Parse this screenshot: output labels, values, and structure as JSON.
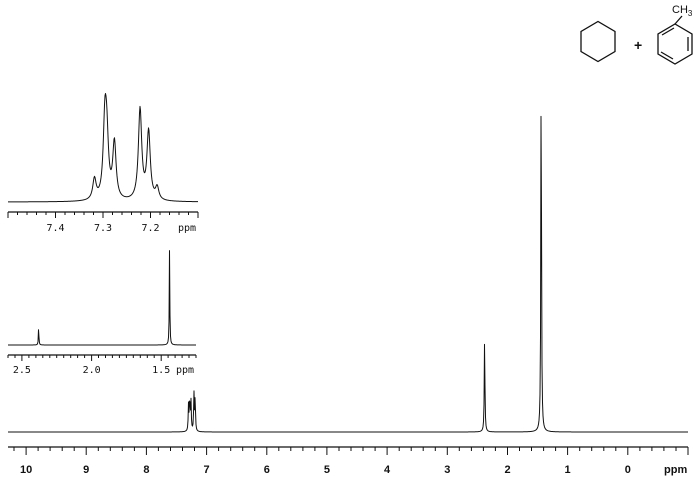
{
  "chart_data": [
    {
      "type": "line",
      "title": "",
      "xlabel": "ppm",
      "ylabel": "",
      "xlim": [
        10.3,
        -1.0
      ],
      "x_reversed": true,
      "grid": false,
      "x_ticks": [
        "10",
        "9",
        "8",
        "7",
        "6",
        "5",
        "4",
        "3",
        "2",
        "1",
        "0"
      ],
      "x_unit_label": "ppm",
      "peaks": [
        {
          "x": 7.3,
          "y": 0.07
        },
        {
          "x": 7.28,
          "y": 0.09
        },
        {
          "x": 7.26,
          "y": 0.08
        },
        {
          "x": 7.21,
          "y": 0.1
        },
        {
          "x": 7.19,
          "y": 0.09
        },
        {
          "x": 2.38,
          "y": 0.25
        },
        {
          "x": 1.44,
          "y": 1.0
        }
      ]
    },
    {
      "type": "line",
      "title": "",
      "xlabel": "ppm",
      "ylabel": "",
      "xlim": [
        7.5,
        7.1
      ],
      "x_reversed": true,
      "grid": false,
      "x_ticks": [
        "7.4",
        "7.3",
        "7.2"
      ],
      "x_unit_label": "ppm",
      "peaks": [
        {
          "x": 7.318,
          "y": 0.22
        },
        {
          "x": 7.296,
          "y": 0.78
        },
        {
          "x": 7.292,
          "y": 0.55
        },
        {
          "x": 7.276,
          "y": 0.6
        },
        {
          "x": 7.222,
          "y": 0.96
        },
        {
          "x": 7.204,
          "y": 0.72
        },
        {
          "x": 7.186,
          "y": 0.13
        }
      ]
    },
    {
      "type": "line",
      "title": "",
      "xlabel": "ppm",
      "ylabel": "",
      "xlim": [
        2.6,
        1.25
      ],
      "x_reversed": true,
      "grid": false,
      "x_ticks": [
        "2.5",
        "2.0",
        "1.5"
      ],
      "x_unit_label": "ppm",
      "peaks": [
        {
          "x": 2.38,
          "y": 0.19
        },
        {
          "x": 1.44,
          "y": 1.0
        }
      ]
    }
  ],
  "structures": {
    "plus": "+",
    "methyl": {
      "main": "CH",
      "sub": "3"
    },
    "left_molecule_icon": "cyclohexane-ring",
    "right_molecule_icon": "toluene-ring"
  }
}
